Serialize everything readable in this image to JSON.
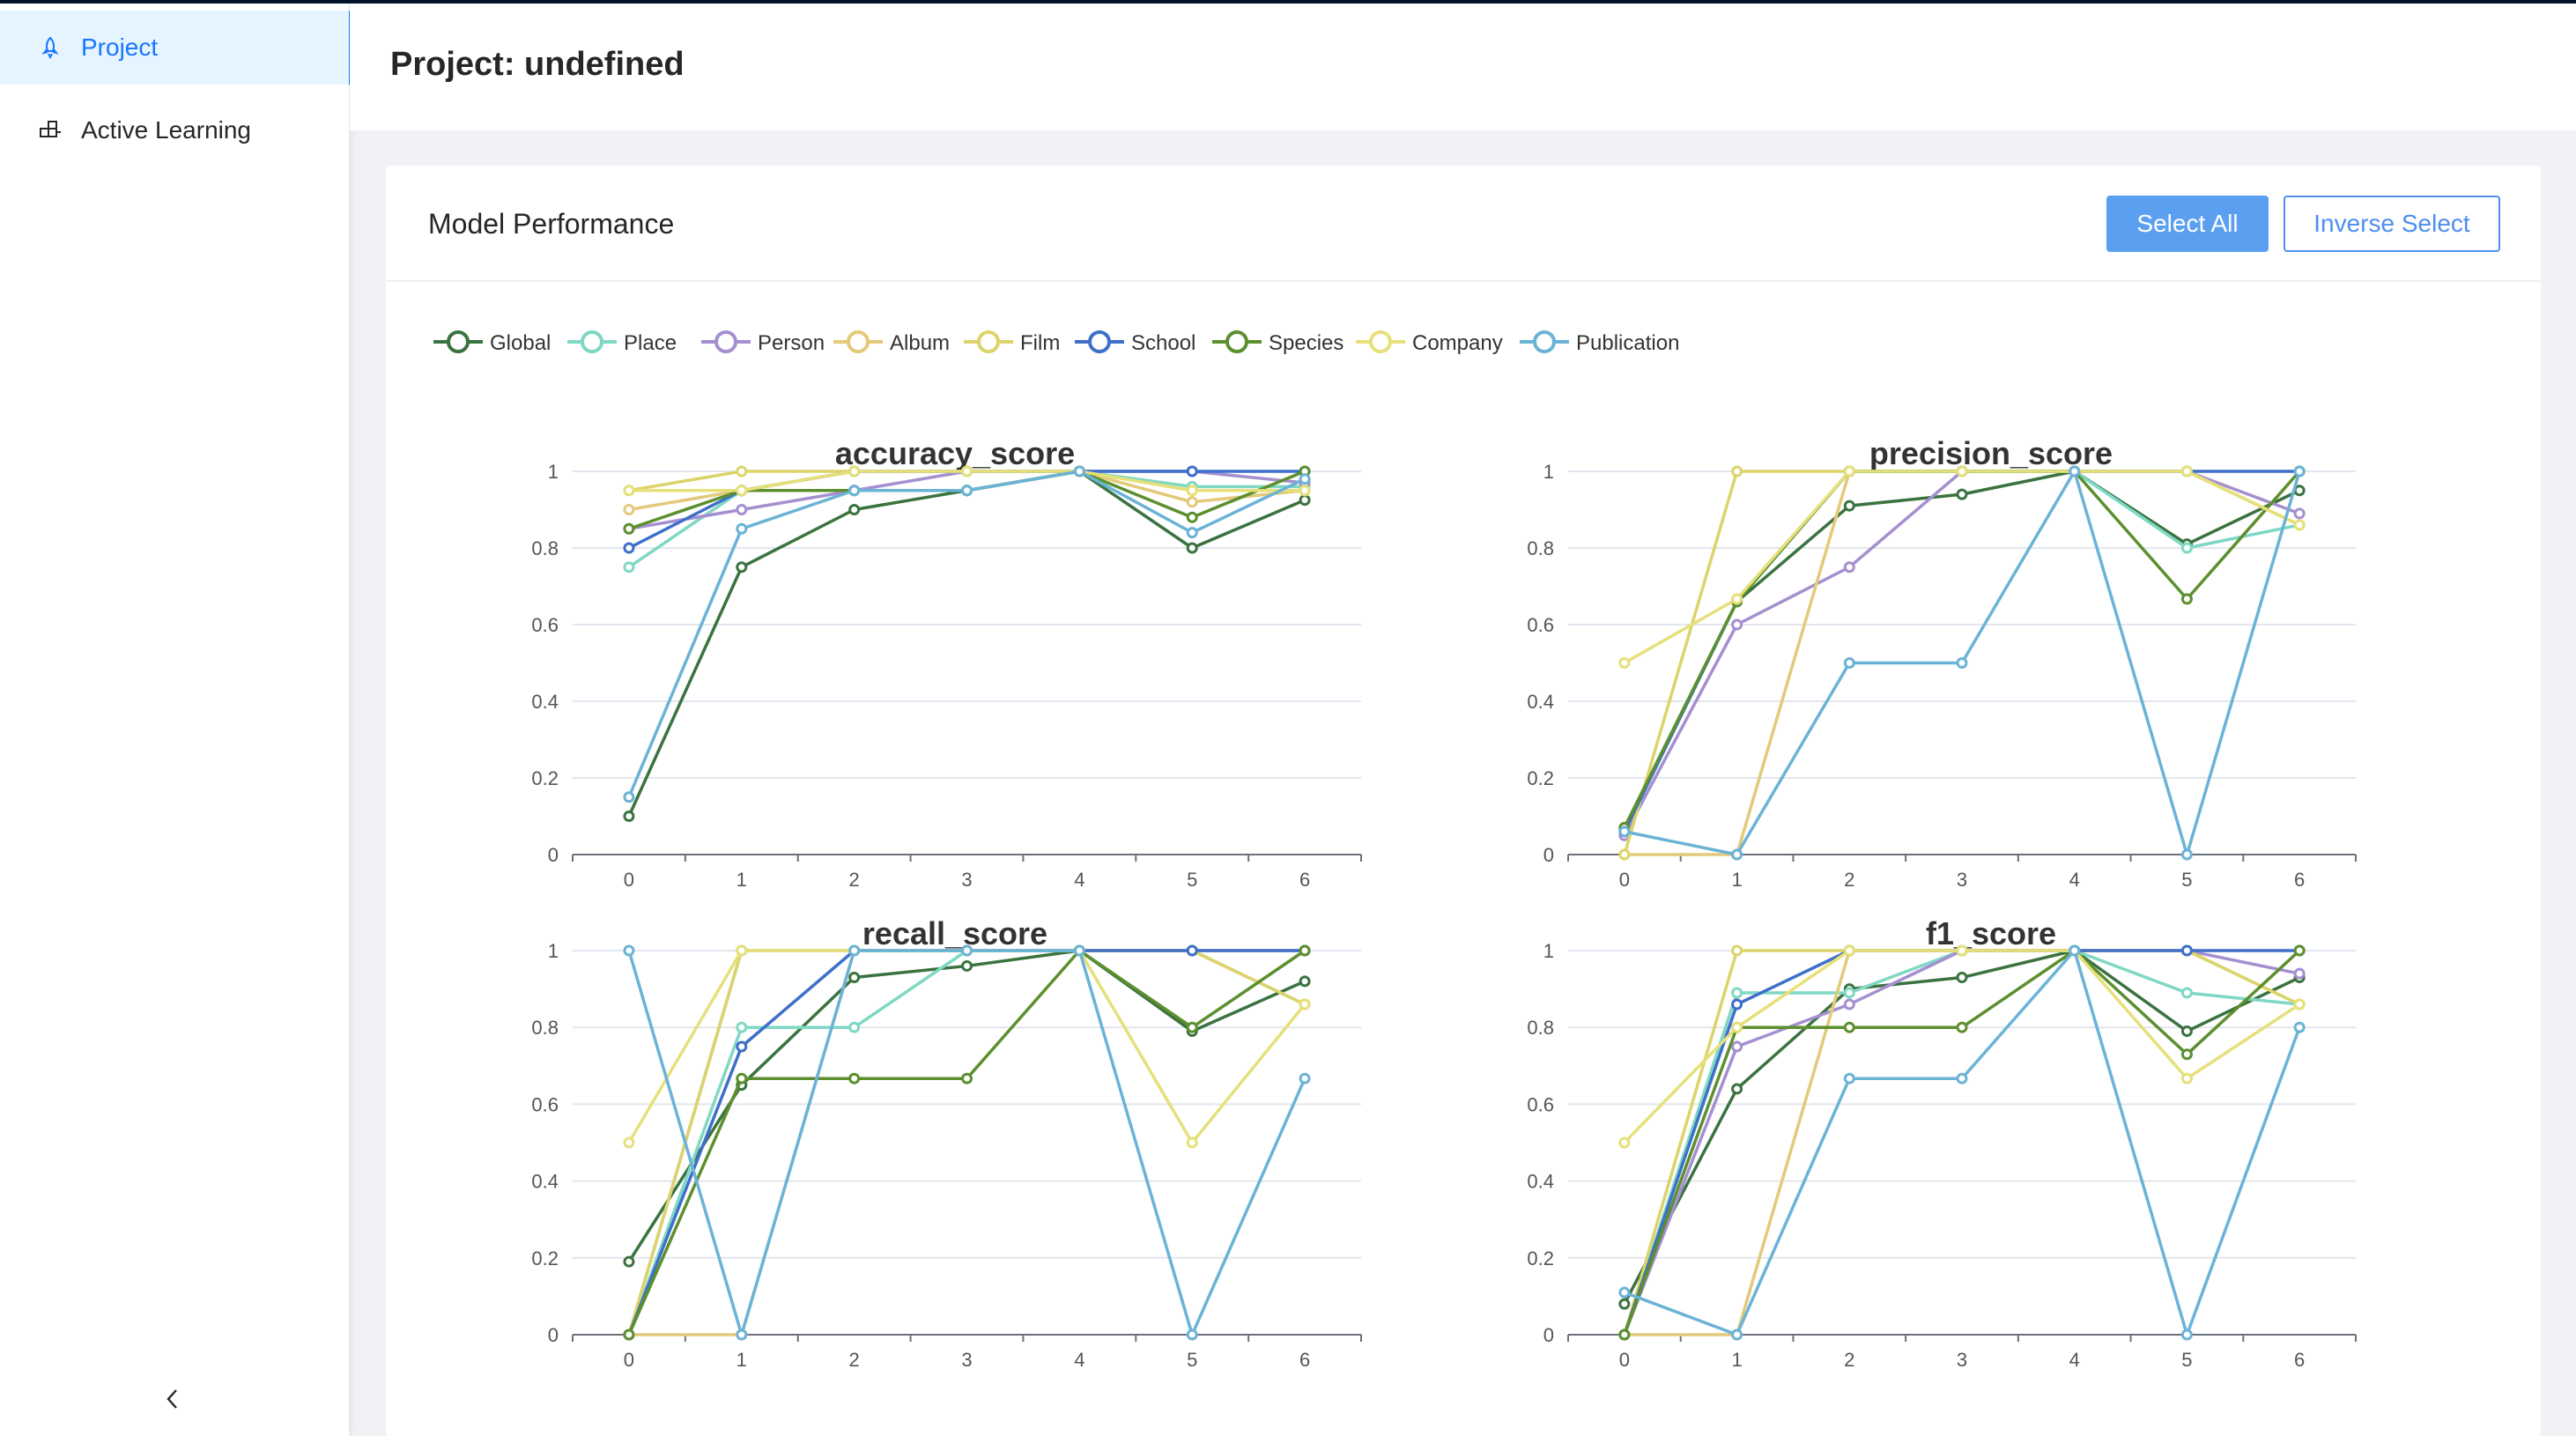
{
  "sidebar": {
    "items": [
      {
        "label": "Project",
        "icon": "rocket-icon",
        "active": true
      },
      {
        "label": "Active Learning",
        "icon": "blocks-icon",
        "active": false
      }
    ],
    "collapse_icon": "chevron-left-icon"
  },
  "header": {
    "title": "Project: undefined"
  },
  "card": {
    "title": "Model Performance",
    "select_all_label": "Select All",
    "inverse_select_label": "Inverse Select"
  },
  "colors": {
    "accent": "#1677ff",
    "button_primary": "#5b9ff0"
  },
  "legend": [
    {
      "name": "Global",
      "color": "#3a7340"
    },
    {
      "name": "Place",
      "color": "#7fd8c4"
    },
    {
      "name": "Person",
      "color": "#a58fd0"
    },
    {
      "name": "Album",
      "color": "#e3c97a"
    },
    {
      "name": "Film",
      "color": "#dcd46a"
    },
    {
      "name": "School",
      "color": "#3e6fc9"
    },
    {
      "name": "Species",
      "color": "#5c8f2e"
    },
    {
      "name": "Company",
      "color": "#e6e07a"
    },
    {
      "name": "Publication",
      "color": "#6bb3d6"
    }
  ],
  "chart_data": [
    {
      "type": "line",
      "title": "accuracy_score",
      "x": [
        0,
        1,
        2,
        3,
        4,
        5,
        6
      ],
      "ylim": [
        0,
        1
      ],
      "yticks": [
        "0",
        "0.2",
        "0.4",
        "0.6",
        "0.8",
        "1"
      ],
      "series": [
        {
          "name": "Global",
          "values": [
            0.1,
            0.75,
            0.9,
            0.95,
            1,
            0.8,
            0.925
          ]
        },
        {
          "name": "Place",
          "values": [
            0.75,
            0.95,
            0.95,
            0.95,
            1,
            0.96,
            0.96
          ]
        },
        {
          "name": "Person",
          "values": [
            0.85,
            0.9,
            0.95,
            1,
            1,
            1,
            0.97
          ]
        },
        {
          "name": "Album",
          "values": [
            0.9,
            0.95,
            1,
            1,
            1,
            0.92,
            0.95
          ]
        },
        {
          "name": "Film",
          "values": [
            0.95,
            1,
            1,
            1,
            1,
            0.95,
            0.95
          ]
        },
        {
          "name": "School",
          "values": [
            0.8,
            0.95,
            1,
            1,
            1,
            1,
            1
          ]
        },
        {
          "name": "Species",
          "values": [
            0.85,
            0.95,
            0.95,
            0.95,
            1,
            0.88,
            1
          ]
        },
        {
          "name": "Company",
          "values": [
            0.95,
            0.95,
            1,
            1,
            1,
            0.95,
            0.95
          ]
        },
        {
          "name": "Publication",
          "values": [
            0.15,
            0.85,
            0.95,
            0.95,
            1,
            0.84,
            0.98
          ]
        }
      ]
    },
    {
      "type": "line",
      "title": "precision_score",
      "x": [
        0,
        1,
        2,
        3,
        4,
        5,
        6
      ],
      "ylim": [
        0,
        1
      ],
      "yticks": [
        "0",
        "0.2",
        "0.4",
        "0.6",
        "0.8",
        "1"
      ],
      "series": [
        {
          "name": "Global",
          "values": [
            0.07,
            0.66,
            0.91,
            0.94,
            1,
            0.81,
            0.95
          ]
        },
        {
          "name": "Place",
          "values": [
            0.06,
            0.66,
            1,
            1,
            1,
            0.8,
            0.86
          ]
        },
        {
          "name": "Person",
          "values": [
            0.05,
            0.6,
            0.75,
            1,
            1,
            1,
            0.89
          ]
        },
        {
          "name": "Album",
          "values": [
            0,
            0,
            1,
            1,
            1,
            1,
            0.86
          ]
        },
        {
          "name": "Film",
          "values": [
            0,
            1,
            1,
            1,
            1,
            1,
            0.86
          ]
        },
        {
          "name": "School",
          "values": [
            0.06,
            0.66,
            1,
            1,
            1,
            1,
            1
          ]
        },
        {
          "name": "Species",
          "values": [
            0.07,
            0.66,
            1,
            1,
            1,
            0.667,
            1
          ]
        },
        {
          "name": "Company",
          "values": [
            0.5,
            0.667,
            1,
            1,
            1,
            1,
            0.86
          ]
        },
        {
          "name": "Publication",
          "values": [
            0.06,
            0,
            0.5,
            0.5,
            1,
            0,
            1
          ]
        }
      ]
    },
    {
      "type": "line",
      "title": "recall_score",
      "x": [
        0,
        1,
        2,
        3,
        4,
        5,
        6
      ],
      "ylim": [
        0,
        1
      ],
      "yticks": [
        "0",
        "0.2",
        "0.4",
        "0.6",
        "0.8",
        "1"
      ],
      "series": [
        {
          "name": "Global",
          "values": [
            0.19,
            0.65,
            0.93,
            0.96,
            1,
            0.79,
            0.92
          ]
        },
        {
          "name": "Place",
          "values": [
            0,
            0.8,
            0.8,
            1,
            1,
            1,
            0.86
          ]
        },
        {
          "name": "Person",
          "values": [
            0,
            1,
            1,
            1,
            1,
            1,
            1
          ]
        },
        {
          "name": "Album",
          "values": [
            0,
            0,
            1,
            1,
            1,
            1,
            0.86
          ]
        },
        {
          "name": "Film",
          "values": [
            0,
            1,
            1,
            1,
            1,
            1,
            0.86
          ]
        },
        {
          "name": "School",
          "values": [
            0,
            0.75,
            1,
            1,
            1,
            1,
            1
          ]
        },
        {
          "name": "Species",
          "values": [
            0,
            0.667,
            0.667,
            0.667,
            1,
            0.8,
            1
          ]
        },
        {
          "name": "Company",
          "values": [
            0.5,
            1,
            1,
            1,
            1,
            0.5,
            0.86
          ]
        },
        {
          "name": "Publication",
          "values": [
            1,
            0,
            1,
            1,
            1,
            0,
            0.667
          ]
        }
      ]
    },
    {
      "type": "line",
      "title": "f1_score",
      "x": [
        0,
        1,
        2,
        3,
        4,
        5,
        6
      ],
      "ylim": [
        0,
        1
      ],
      "yticks": [
        "0",
        "0.2",
        "0.4",
        "0.6",
        "0.8",
        "1"
      ],
      "series": [
        {
          "name": "Global",
          "values": [
            0.08,
            0.64,
            0.9,
            0.93,
            1,
            0.79,
            0.93
          ]
        },
        {
          "name": "Place",
          "values": [
            0,
            0.89,
            0.89,
            1,
            1,
            0.89,
            0.86
          ]
        },
        {
          "name": "Person",
          "values": [
            0,
            0.75,
            0.86,
            1,
            1,
            1,
            0.94
          ]
        },
        {
          "name": "Album",
          "values": [
            0,
            0,
            1,
            1,
            1,
            1,
            0.86
          ]
        },
        {
          "name": "Film",
          "values": [
            0,
            1,
            1,
            1,
            1,
            1,
            0.86
          ]
        },
        {
          "name": "School",
          "values": [
            0,
            0.86,
            1,
            1,
            1,
            1,
            1
          ]
        },
        {
          "name": "Species",
          "values": [
            0,
            0.8,
            0.8,
            0.8,
            1,
            0.73,
            1
          ]
        },
        {
          "name": "Company",
          "values": [
            0.5,
            0.8,
            1,
            1,
            1,
            0.667,
            0.86
          ]
        },
        {
          "name": "Publication",
          "values": [
            0.11,
            0,
            0.667,
            0.667,
            1,
            0,
            0.8
          ]
        }
      ]
    }
  ]
}
